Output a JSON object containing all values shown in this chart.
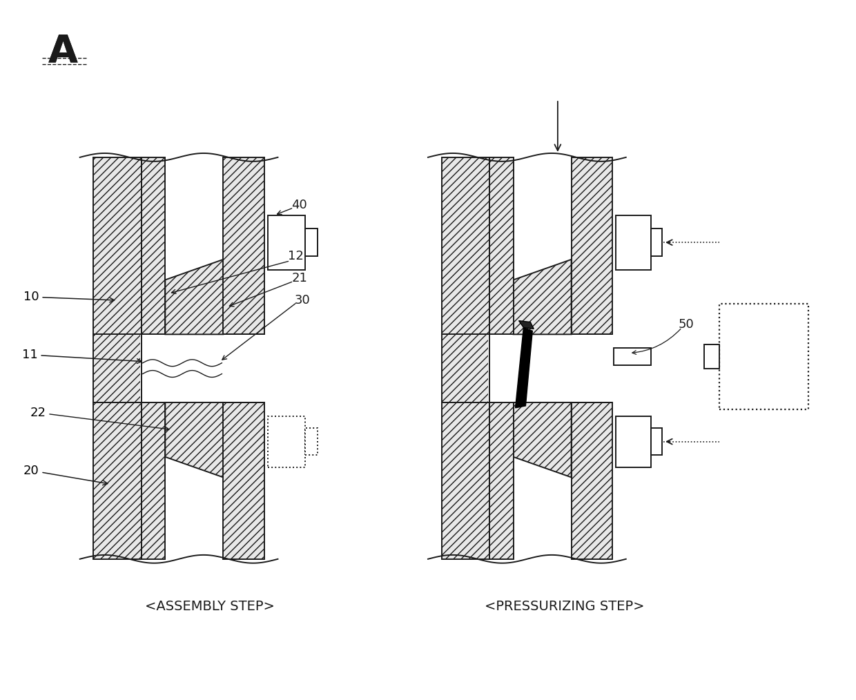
{
  "bg_color": "#ffffff",
  "line_color": "#1a1a1a",
  "fig_label": "A",
  "left_caption": "<ASSEMBLY STEP>",
  "right_caption": "<PRESSURIZING STEP>",
  "lw": 1.4,
  "hatch_density": "///",
  "hatch_lw": 0.6,
  "label_fs": 13
}
